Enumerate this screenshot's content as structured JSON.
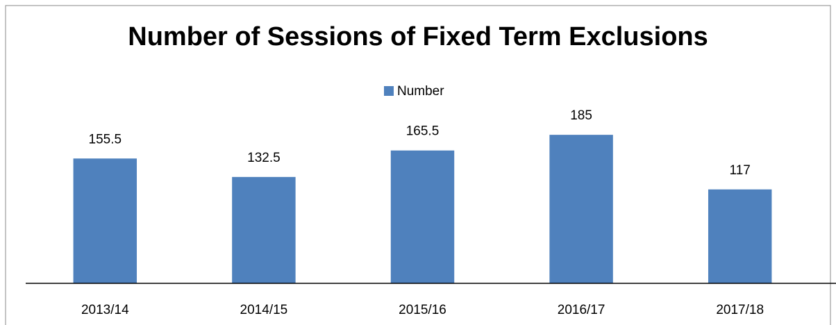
{
  "chart_data": {
    "type": "bar",
    "title": "Number of Sessions of Fixed Term Exclusions",
    "categories": [
      "2013/14",
      "2014/15",
      "2015/16",
      "2016/17",
      "2017/18"
    ],
    "series": [
      {
        "name": "Number",
        "color": "#4f81bd",
        "values": [
          155.5,
          132.5,
          165.5,
          185,
          117
        ]
      }
    ],
    "ylim": [
      0,
      250
    ],
    "legend": "top"
  }
}
